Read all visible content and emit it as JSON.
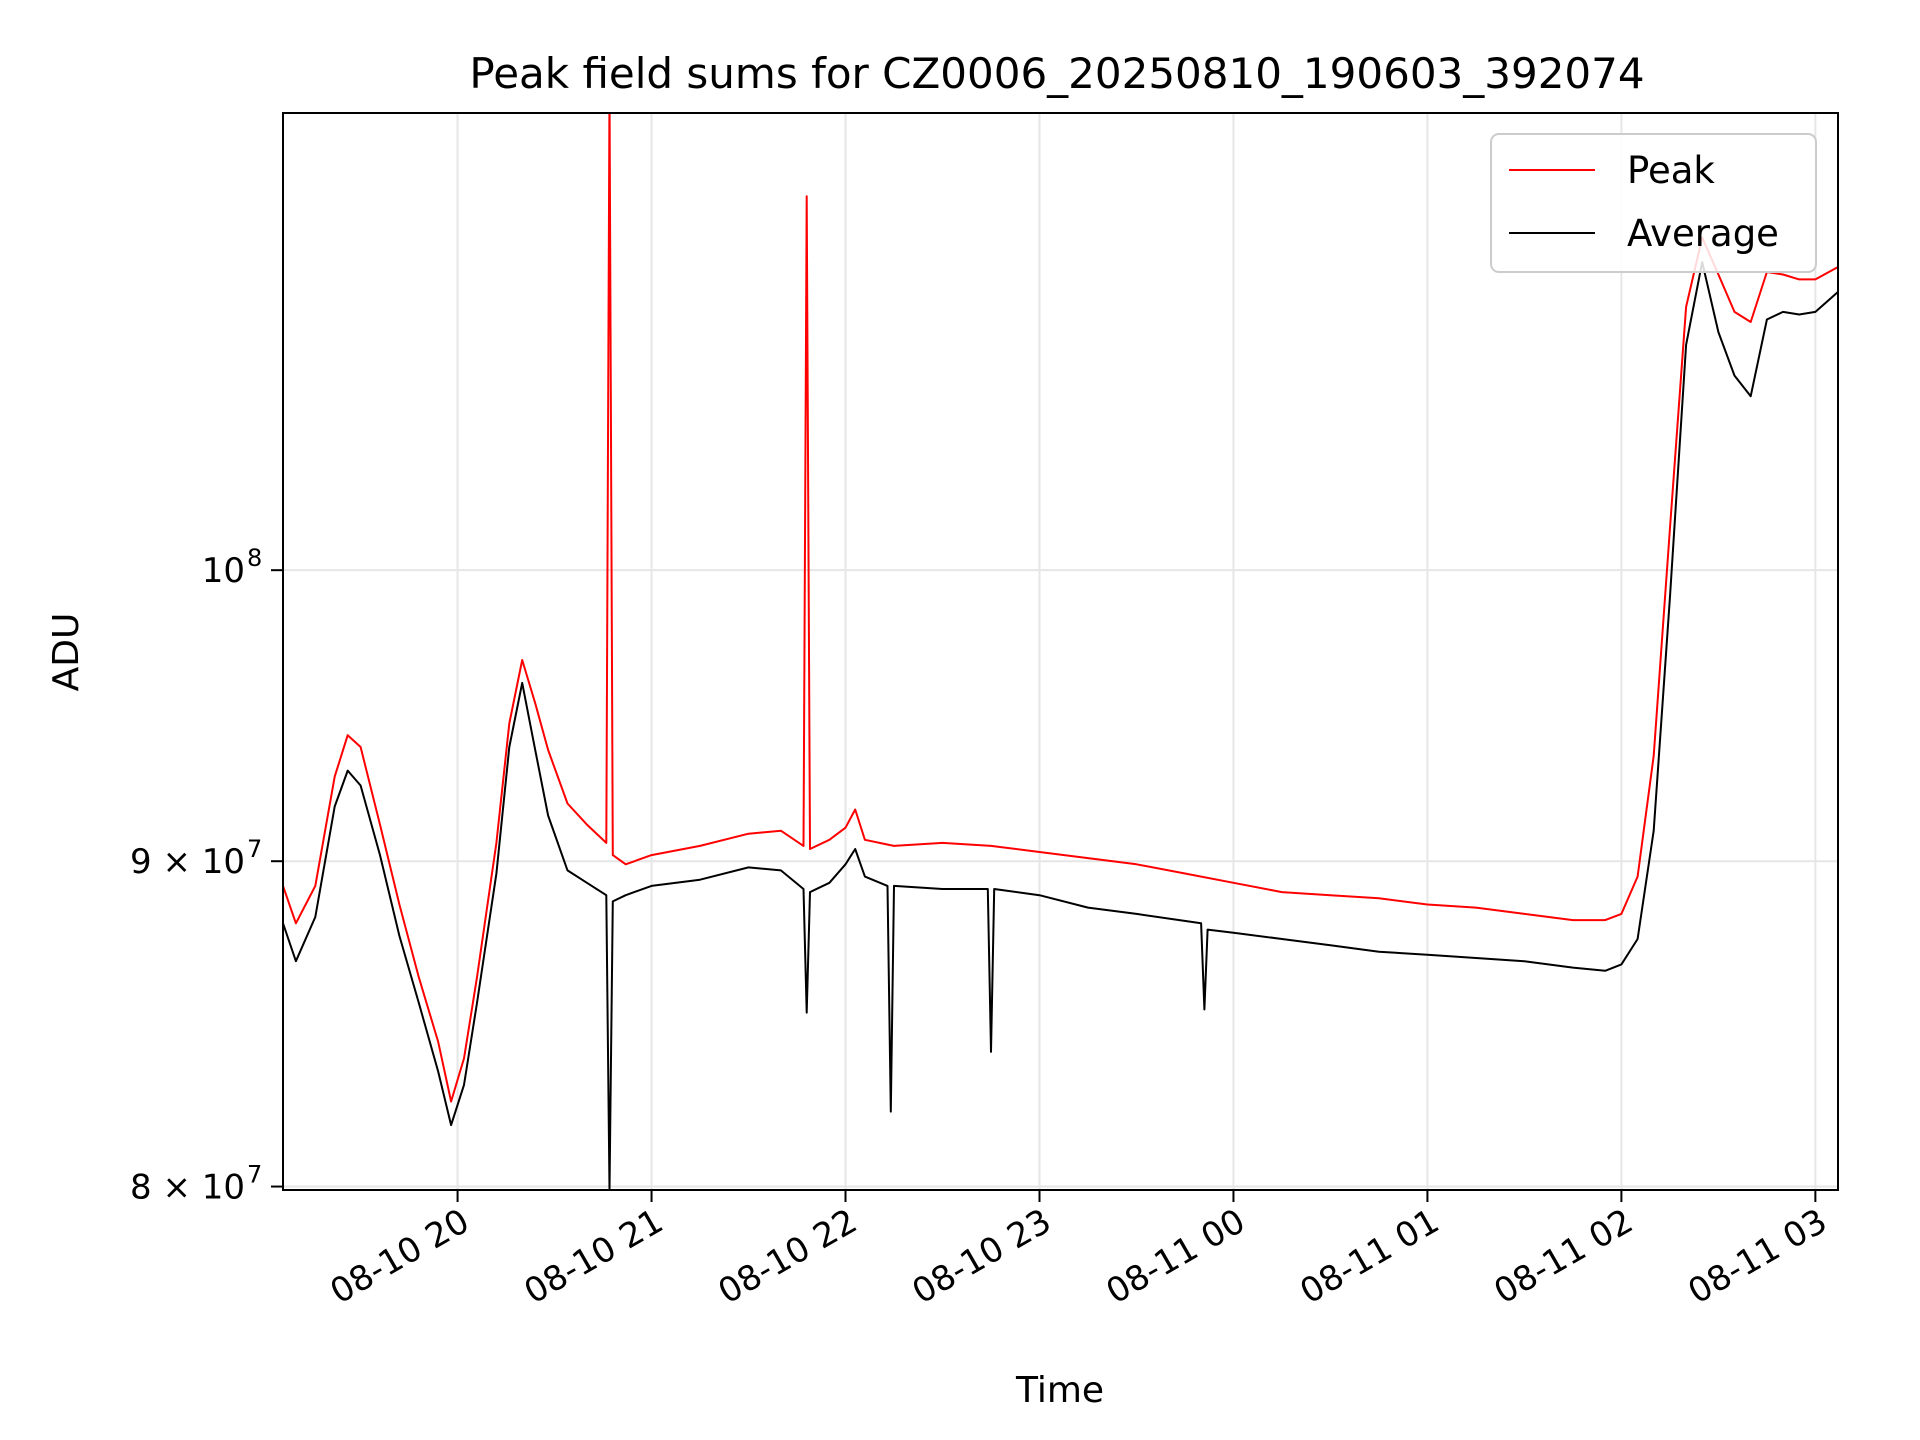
{
  "chart_data": {
    "type": "line",
    "title": "Peak field sums for CZ0006_20250810_190603_392074",
    "xlabel": "Time",
    "ylabel": "ADU",
    "x_axis": {
      "type": "time",
      "range": [
        "2025-08-10 19:06",
        "2025-08-11 03:07"
      ],
      "ticks": [
        {
          "value": "2025-08-10 20:00",
          "label": "08-10 20"
        },
        {
          "value": "2025-08-10 21:00",
          "label": "08-10 21"
        },
        {
          "value": "2025-08-10 22:00",
          "label": "08-10 22"
        },
        {
          "value": "2025-08-10 23:00",
          "label": "08-10 23"
        },
        {
          "value": "2025-08-11 00:00",
          "label": "08-11 00"
        },
        {
          "value": "2025-08-11 01:00",
          "label": "08-11 01"
        },
        {
          "value": "2025-08-11 02:00",
          "label": "08-11 02"
        },
        {
          "value": "2025-08-11 03:00",
          "label": "08-11 03"
        }
      ],
      "tick_label_rotation_deg": 30
    },
    "y_axis": {
      "scale": "log",
      "range": [
        79900000,
        118000000
      ],
      "ticks": [
        {
          "value": 80000000,
          "label_base": "8 × 10",
          "label_exp": "7"
        },
        {
          "value": 90000000,
          "label_base": "9 × 10",
          "label_exp": "7"
        },
        {
          "value": 100000000,
          "label_base": "10",
          "label_exp": "8"
        }
      ]
    },
    "grid": true,
    "legend": {
      "placement": "top-right",
      "entries": [
        {
          "label": "Peak",
          "color": "#ff0000"
        },
        {
          "label": "Average",
          "color": "#000000"
        }
      ]
    },
    "series": [
      {
        "name": "Peak",
        "color": "#ff0000",
        "points": [
          [
            "2025-08-10 19:06",
            89200000
          ],
          [
            "2025-08-10 19:10",
            88000000
          ],
          [
            "2025-08-10 19:16",
            89200000
          ],
          [
            "2025-08-10 19:22",
            92800000
          ],
          [
            "2025-08-10 19:26",
            94200000
          ],
          [
            "2025-08-10 19:30",
            93800000
          ],
          [
            "2025-08-10 19:36",
            91200000
          ],
          [
            "2025-08-10 19:42",
            88600000
          ],
          [
            "2025-08-10 19:48",
            86300000
          ],
          [
            "2025-08-10 19:54",
            84300000
          ],
          [
            "2025-08-10 19:58",
            82500000
          ],
          [
            "2025-08-10 20:02",
            83800000
          ],
          [
            "2025-08-10 20:06",
            86300000
          ],
          [
            "2025-08-10 20:12",
            90600000
          ],
          [
            "2025-08-10 20:16",
            94600000
          ],
          [
            "2025-08-10 20:20",
            96800000
          ],
          [
            "2025-08-10 20:24",
            95300000
          ],
          [
            "2025-08-10 20:28",
            93700000
          ],
          [
            "2025-08-10 20:34",
            91900000
          ],
          [
            "2025-08-10 20:40",
            91200000
          ],
          [
            "2025-08-10 20:46",
            90600000
          ],
          [
            "2025-08-10 20:47",
            119000000
          ],
          [
            "2025-08-10 20:48",
            90200000
          ],
          [
            "2025-08-10 20:52",
            89900000
          ],
          [
            "2025-08-10 21:00",
            90200000
          ],
          [
            "2025-08-10 21:15",
            90500000
          ],
          [
            "2025-08-10 21:30",
            90900000
          ],
          [
            "2025-08-10 21:40",
            91000000
          ],
          [
            "2025-08-10 21:47",
            90500000
          ],
          [
            "2025-08-10 21:48",
            114500000
          ],
          [
            "2025-08-10 21:49",
            90400000
          ],
          [
            "2025-08-10 21:55",
            90700000
          ],
          [
            "2025-08-10 22:00",
            91100000
          ],
          [
            "2025-08-10 22:03",
            91700000
          ],
          [
            "2025-08-10 22:06",
            90700000
          ],
          [
            "2025-08-10 22:15",
            90500000
          ],
          [
            "2025-08-10 22:30",
            90600000
          ],
          [
            "2025-08-10 22:45",
            90500000
          ],
          [
            "2025-08-10 23:00",
            90300000
          ],
          [
            "2025-08-10 23:15",
            90100000
          ],
          [
            "2025-08-10 23:30",
            89900000
          ],
          [
            "2025-08-10 23:45",
            89600000
          ],
          [
            "2025-08-11 00:00",
            89300000
          ],
          [
            "2025-08-11 00:15",
            89000000
          ],
          [
            "2025-08-11 00:30",
            88900000
          ],
          [
            "2025-08-11 00:45",
            88800000
          ],
          [
            "2025-08-11 01:00",
            88600000
          ],
          [
            "2025-08-11 01:15",
            88500000
          ],
          [
            "2025-08-11 01:30",
            88300000
          ],
          [
            "2025-08-11 01:45",
            88100000
          ],
          [
            "2025-08-11 01:55",
            88100000
          ],
          [
            "2025-08-11 02:00",
            88300000
          ],
          [
            "2025-08-11 02:05",
            89500000
          ],
          [
            "2025-08-11 02:10",
            93500000
          ],
          [
            "2025-08-11 02:15",
            101500000
          ],
          [
            "2025-08-11 02:20",
            110000000
          ],
          [
            "2025-08-11 02:25",
            112800000
          ],
          [
            "2025-08-11 02:30",
            111300000
          ],
          [
            "2025-08-11 02:35",
            109800000
          ],
          [
            "2025-08-11 02:40",
            109400000
          ],
          [
            "2025-08-11 02:45",
            111400000
          ],
          [
            "2025-08-11 02:50",
            111300000
          ],
          [
            "2025-08-11 02:55",
            111100000
          ],
          [
            "2025-08-11 03:00",
            111100000
          ],
          [
            "2025-08-11 03:07",
            111600000
          ]
        ]
      },
      {
        "name": "Average",
        "color": "#000000",
        "points": [
          [
            "2025-08-10 19:06",
            88000000
          ],
          [
            "2025-08-10 19:10",
            86800000
          ],
          [
            "2025-08-10 19:16",
            88200000
          ],
          [
            "2025-08-10 19:22",
            91800000
          ],
          [
            "2025-08-10 19:26",
            93000000
          ],
          [
            "2025-08-10 19:30",
            92500000
          ],
          [
            "2025-08-10 19:36",
            90200000
          ],
          [
            "2025-08-10 19:42",
            87600000
          ],
          [
            "2025-08-10 19:48",
            85500000
          ],
          [
            "2025-08-10 19:54",
            83400000
          ],
          [
            "2025-08-10 19:58",
            81800000
          ],
          [
            "2025-08-10 20:02",
            83000000
          ],
          [
            "2025-08-10 20:06",
            85500000
          ],
          [
            "2025-08-10 20:12",
            89600000
          ],
          [
            "2025-08-10 20:16",
            93800000
          ],
          [
            "2025-08-10 20:20",
            96000000
          ],
          [
            "2025-08-10 20:24",
            93700000
          ],
          [
            "2025-08-10 20:28",
            91500000
          ],
          [
            "2025-08-10 20:34",
            89700000
          ],
          [
            "2025-08-10 20:40",
            89300000
          ],
          [
            "2025-08-10 20:46",
            88900000
          ],
          [
            "2025-08-10 20:47",
            79900000
          ],
          [
            "2025-08-10 20:48",
            88700000
          ],
          [
            "2025-08-10 20:52",
            88900000
          ],
          [
            "2025-08-10 21:00",
            89200000
          ],
          [
            "2025-08-10 21:15",
            89400000
          ],
          [
            "2025-08-10 21:30",
            89800000
          ],
          [
            "2025-08-10 21:40",
            89700000
          ],
          [
            "2025-08-10 21:47",
            89100000
          ],
          [
            "2025-08-10 21:48",
            85200000
          ],
          [
            "2025-08-10 21:49",
            89000000
          ],
          [
            "2025-08-10 21:55",
            89300000
          ],
          [
            "2025-08-10 22:00",
            89900000
          ],
          [
            "2025-08-10 22:03",
            90400000
          ],
          [
            "2025-08-10 22:06",
            89500000
          ],
          [
            "2025-08-10 22:13",
            89200000
          ],
          [
            "2025-08-10 22:14",
            82200000
          ],
          [
            "2025-08-10 22:15",
            89200000
          ],
          [
            "2025-08-10 22:30",
            89100000
          ],
          [
            "2025-08-10 22:44",
            89100000
          ],
          [
            "2025-08-10 22:45",
            84000000
          ],
          [
            "2025-08-10 22:46",
            89100000
          ],
          [
            "2025-08-10 23:00",
            88900000
          ],
          [
            "2025-08-10 23:15",
            88500000
          ],
          [
            "2025-08-10 23:30",
            88300000
          ],
          [
            "2025-08-10 23:50",
            88000000
          ],
          [
            "2025-08-10 23:51",
            85300000
          ],
          [
            "2025-08-10 23:52",
            87800000
          ],
          [
            "2025-08-11 00:00",
            87700000
          ],
          [
            "2025-08-11 00:15",
            87500000
          ],
          [
            "2025-08-11 00:30",
            87300000
          ],
          [
            "2025-08-11 00:45",
            87100000
          ],
          [
            "2025-08-11 01:00",
            87000000
          ],
          [
            "2025-08-11 01:15",
            86900000
          ],
          [
            "2025-08-11 01:30",
            86800000
          ],
          [
            "2025-08-11 01:45",
            86600000
          ],
          [
            "2025-08-11 01:55",
            86500000
          ],
          [
            "2025-08-11 02:00",
            86700000
          ],
          [
            "2025-08-11 02:05",
            87500000
          ],
          [
            "2025-08-11 02:10",
            91000000
          ],
          [
            "2025-08-11 02:15",
            99000000
          ],
          [
            "2025-08-11 02:20",
            108500000
          ],
          [
            "2025-08-11 02:25",
            111800000
          ],
          [
            "2025-08-11 02:30",
            109000000
          ],
          [
            "2025-08-11 02:35",
            107300000
          ],
          [
            "2025-08-11 02:40",
            106500000
          ],
          [
            "2025-08-11 02:45",
            109500000
          ],
          [
            "2025-08-11 02:50",
            109800000
          ],
          [
            "2025-08-11 02:55",
            109700000
          ],
          [
            "2025-08-11 03:00",
            109800000
          ],
          [
            "2025-08-11 03:07",
            110600000
          ]
        ]
      }
    ]
  }
}
